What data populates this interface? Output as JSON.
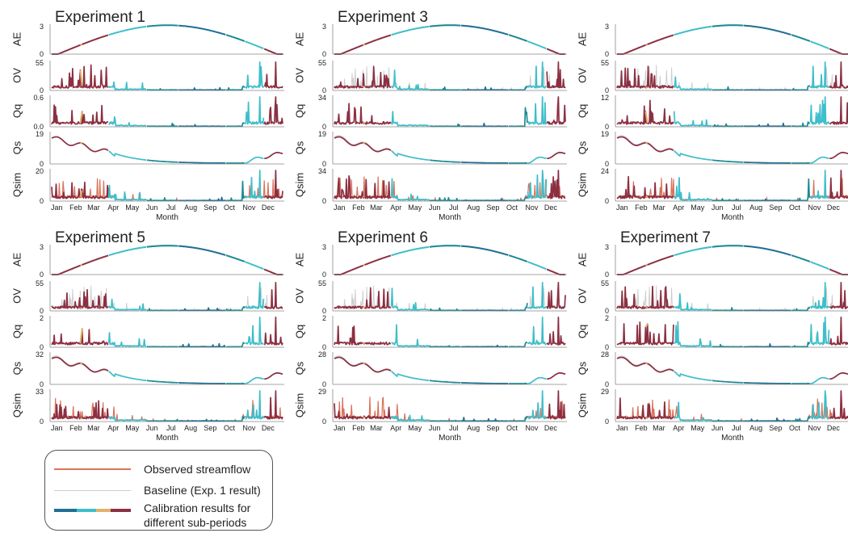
{
  "colors": {
    "observed": "#d9735a",
    "baseline": "#cccccc",
    "periods": [
      "#1f6f94",
      "#1a8a95",
      "#3fbecb",
      "#e0b36a",
      "#8c2f42"
    ],
    "axis": "#888888",
    "text": "#222222"
  },
  "chart_data": {
    "type": "line",
    "months": [
      "Jan",
      "Feb",
      "Mar",
      "Apr",
      "May",
      "Jun",
      "Jul",
      "Aug",
      "Sep",
      "Oct",
      "Nov",
      "Dec"
    ],
    "xlabel": "Month",
    "variables": [
      "AE",
      "OV",
      "Qq",
      "Qs",
      "Qsim"
    ],
    "experiments": [
      {
        "title": "Experiment 1",
        "ylims": {
          "AE": 3,
          "OV": 55,
          "Qq": 0.6,
          "Qs": 19,
          "Qsim": 20
        },
        "ytick_labels": {
          "AE": [
            "0",
            "3"
          ],
          "OV": [
            "0",
            "55"
          ],
          "Qq": [
            "0.0",
            "0.6"
          ],
          "Qs": [
            "0",
            "19"
          ],
          "Qsim": [
            "0",
            "20"
          ]
        }
      },
      {
        "title": "Experiment 3",
        "ylims": {
          "AE": 3,
          "OV": 55,
          "Qq": 34,
          "Qs": 19,
          "Qsim": 34
        },
        "ytick_labels": {
          "AE": [
            "0",
            "3"
          ],
          "OV": [
            "0",
            "55"
          ],
          "Qq": [
            "0",
            "34"
          ],
          "Qs": [
            "0",
            "19"
          ],
          "Qsim": [
            "0",
            "34"
          ]
        }
      },
      {
        "title": "",
        "ylims": {
          "AE": 3,
          "OV": 55,
          "Qq": 12,
          "Qs": 19,
          "Qsim": 24
        },
        "ytick_labels": {
          "AE": [
            "0",
            "3"
          ],
          "OV": [
            "0",
            "55"
          ],
          "Qq": [
            "0",
            "12"
          ],
          "Qs": [
            "0",
            "19"
          ],
          "Qsim": [
            "0",
            "24"
          ]
        }
      },
      {
        "title": "Experiment 5",
        "ylims": {
          "AE": 3,
          "OV": 55,
          "Qq": 2,
          "Qs": 32,
          "Qsim": 33
        },
        "ytick_labels": {
          "AE": [
            "0",
            "3"
          ],
          "OV": [
            "0",
            "55"
          ],
          "Qq": [
            "0",
            "2"
          ],
          "Qs": [
            "0",
            "32"
          ],
          "Qsim": [
            "0",
            "33"
          ]
        }
      },
      {
        "title": "Experiment 6",
        "ylims": {
          "AE": 3,
          "OV": 55,
          "Qq": 2,
          "Qs": 28,
          "Qsim": 29
        },
        "ytick_labels": {
          "AE": [
            "0",
            "3"
          ],
          "OV": [
            "0",
            "55"
          ],
          "Qq": [
            "0",
            "2"
          ],
          "Qs": [
            "0",
            "28"
          ],
          "Qsim": [
            "0",
            "29"
          ]
        }
      },
      {
        "title": "Experiment 7",
        "ylims": {
          "AE": 3,
          "OV": 55,
          "Qq": 2,
          "Qs": 28,
          "Qsim": 29
        },
        "ytick_labels": {
          "AE": [
            "0",
            "3"
          ],
          "OV": [
            "0",
            "55"
          ],
          "Qq": [
            "0",
            "2"
          ],
          "Qs": [
            "0",
            "28"
          ],
          "Qsim": [
            "0",
            "29"
          ]
        }
      }
    ]
  },
  "legend": {
    "observed": "Observed streamflow",
    "baseline": "Baseline (Exp. 1 result)",
    "calibration_line1": "Calibration results for",
    "calibration_line2": "different sub-periods"
  }
}
